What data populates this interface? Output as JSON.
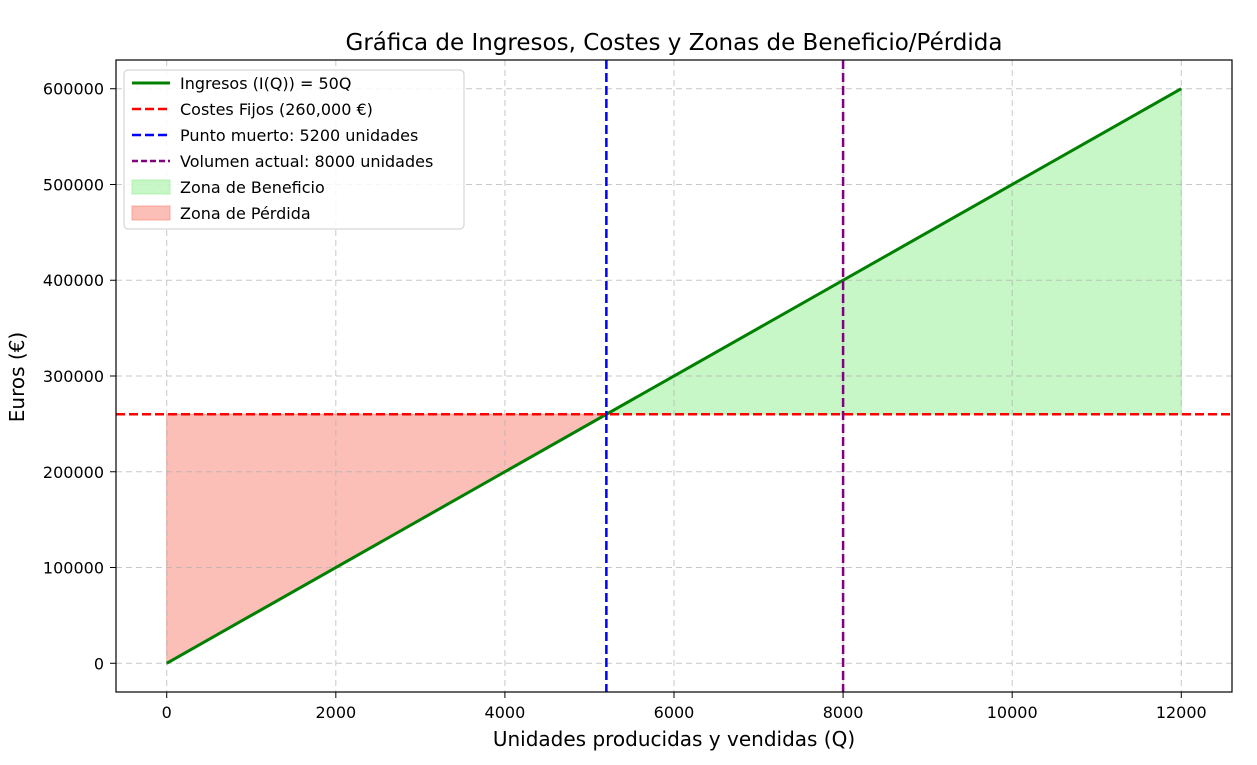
{
  "chart_data": {
    "type": "line",
    "title": "Gráfica de Ingresos, Costes y Zonas de Beneficio/Pérdida",
    "xlabel": "Unidades producidas y vendidas (Q)",
    "ylabel": "Euros (€)",
    "xlim": [
      -600,
      12600
    ],
    "ylim": [
      -30000,
      630000
    ],
    "xticks": [
      0,
      2000,
      4000,
      6000,
      8000,
      10000,
      12000
    ],
    "xtick_labels": [
      "0",
      "2000",
      "4000",
      "6000",
      "8000",
      "10000",
      "12000"
    ],
    "yticks": [
      0,
      100000,
      200000,
      300000,
      400000,
      500000,
      600000
    ],
    "ytick_labels": [
      "0",
      "100000",
      "200000",
      "300000",
      "400000",
      "500000",
      "600000"
    ],
    "grid": true,
    "legend_position": "top-left",
    "series": [
      {
        "name": "Ingresos (I(Q)) = 50Q",
        "kind": "line",
        "x": [
          0,
          12000
        ],
        "y": [
          0,
          600000
        ],
        "color": "#008000",
        "style": "solid"
      },
      {
        "name": "Costes Fijos (260,000 €)",
        "kind": "hline",
        "y": 260000,
        "color": "#ff0000",
        "style": "dashed"
      },
      {
        "name": "Punto muerto: 5200 unidades",
        "kind": "vline",
        "x": 5200,
        "color": "#0000ff",
        "style": "dashed"
      },
      {
        "name": "Volumen actual: 8000 unidades",
        "kind": "vline",
        "x": 8000,
        "color": "#800080",
        "style": "dashed"
      },
      {
        "name": "Zona de Beneficio",
        "kind": "fill",
        "x_range": [
          5200,
          12000
        ],
        "baseline": 260000,
        "color": "#90ee90"
      },
      {
        "name": "Zona de Pérdida",
        "kind": "fill",
        "x_range": [
          0,
          5200
        ],
        "baseline": 260000,
        "color": "#fa8072"
      }
    ]
  }
}
